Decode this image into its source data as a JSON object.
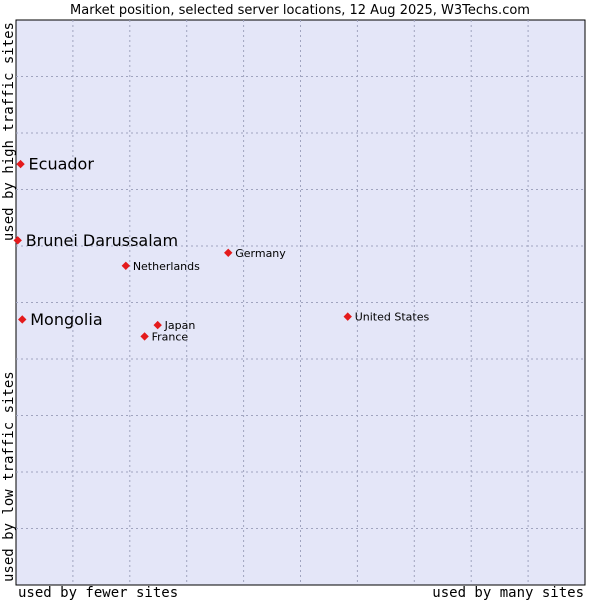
{
  "chart_data": {
    "type": "scatter",
    "title": "Market position, selected server locations, 12 Aug 2025, W3Techs.com",
    "xlabel_low": "used by fewer sites",
    "xlabel_high": "used by many sites",
    "ylabel_low": "used by low traffic sites",
    "ylabel_high": "used by high traffic sites",
    "xlim": [
      0,
      100
    ],
    "ylim": [
      0,
      100
    ],
    "grid": true,
    "colors": {
      "plot_bg": "#e4e6f8",
      "grid": "#a0a4bf",
      "point": "#e41a1c"
    },
    "points": [
      {
        "name": "Ecuador",
        "x": 0.8,
        "y": 74.5,
        "emphasis": true
      },
      {
        "name": "Brunei Darussalam",
        "x": 0.3,
        "y": 61.0,
        "emphasis": true
      },
      {
        "name": "Mongolia",
        "x": 1.1,
        "y": 47.0,
        "emphasis": true
      },
      {
        "name": "Germany",
        "x": 37.3,
        "y": 58.8,
        "emphasis": false
      },
      {
        "name": "Netherlands",
        "x": 19.3,
        "y": 56.5,
        "emphasis": false
      },
      {
        "name": "United States",
        "x": 58.3,
        "y": 47.5,
        "emphasis": false
      },
      {
        "name": "Japan",
        "x": 24.9,
        "y": 46.0,
        "emphasis": false
      },
      {
        "name": "France",
        "x": 22.6,
        "y": 44.0,
        "emphasis": false
      }
    ]
  }
}
